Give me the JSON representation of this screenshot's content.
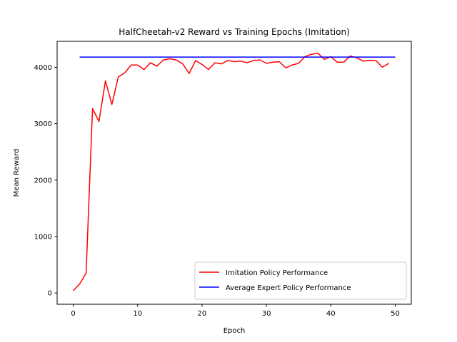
{
  "chart_data": {
    "type": "line",
    "title": "HalfCheetah-v2 Reward vs Training Epochs (Imitation)",
    "xlabel": "Epoch",
    "ylabel": "Mean Reward",
    "xlim": [
      -2.5,
      52.5
    ],
    "ylim": [
      -200,
      4460
    ],
    "xticks": [
      0,
      10,
      20,
      30,
      40,
      50
    ],
    "yticks": [
      0,
      1000,
      2000,
      3000,
      4000
    ],
    "grid": false,
    "legend_position": "lower right",
    "series": [
      {
        "name": "Imitation Policy Performance",
        "color": "#ff0000",
        "x": [
          0,
          1,
          2,
          3,
          4,
          5,
          6,
          7,
          8,
          9,
          10,
          11,
          12,
          13,
          14,
          15,
          16,
          17,
          18,
          19,
          20,
          21,
          22,
          23,
          24,
          25,
          26,
          27,
          28,
          29,
          30,
          31,
          32,
          33,
          34,
          35,
          36,
          37,
          38,
          39,
          40,
          41,
          42,
          43,
          44,
          45,
          46,
          47,
          48,
          49
        ],
        "y": [
          40,
          160,
          350,
          3270,
          3040,
          3760,
          3340,
          3830,
          3900,
          4040,
          4040,
          3960,
          4080,
          4020,
          4130,
          4150,
          4130,
          4060,
          3890,
          4120,
          4050,
          3960,
          4080,
          4060,
          4120,
          4100,
          4110,
          4080,
          4120,
          4130,
          4070,
          4090,
          4100,
          3990,
          4040,
          4070,
          4190,
          4230,
          4250,
          4140,
          4190,
          4090,
          4090,
          4200,
          4170,
          4110,
          4120,
          4120,
          4000,
          4070
        ]
      },
      {
        "name": "Average Expert Policy Performance",
        "color": "#0000ff",
        "x": [
          1,
          50
        ],
        "y": [
          4180,
          4180
        ]
      }
    ]
  }
}
